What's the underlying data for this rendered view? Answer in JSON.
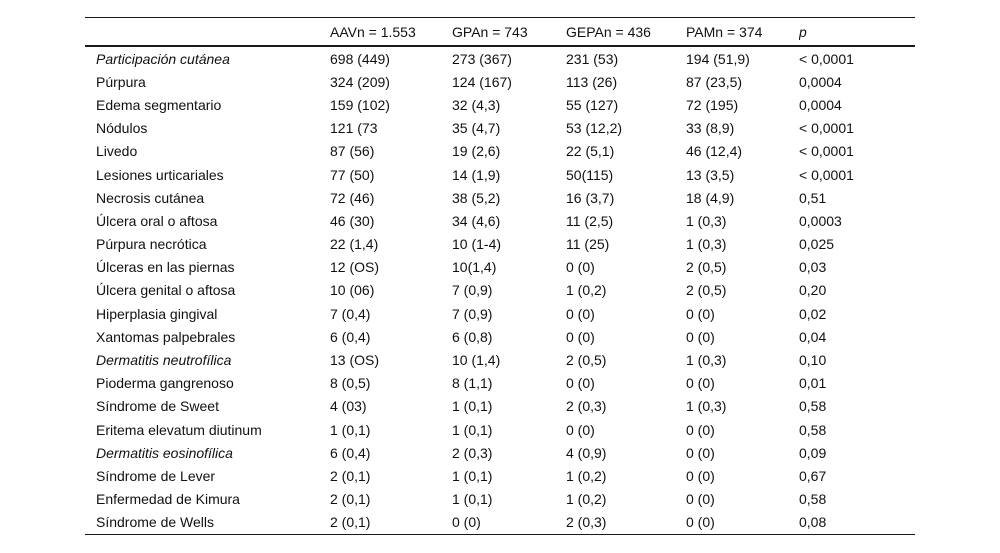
{
  "table": {
    "columns": [
      {
        "label": ""
      },
      {
        "label": "AAVn = 1.553"
      },
      {
        "label": "GPAn = 743"
      },
      {
        "label": "GEPAn = 436"
      },
      {
        "label": "PAMn = 374"
      },
      {
        "label": "p"
      }
    ],
    "rows": [
      {
        "label": "Participación cutánea",
        "italic": true,
        "aav": "698 (449)",
        "gpa": "273 (367)",
        "gepa": "231 (53)",
        "pam": "194 (51,9)",
        "p": "<     0,0001"
      },
      {
        "label": "Púrpura",
        "italic": false,
        "aav": "324 (209)",
        "gpa": "124 (167)",
        "gepa": "113 (26)",
        "pam": "87 (23,5)",
        "p": "0,0004"
      },
      {
        "label": "Edema segmentario",
        "italic": false,
        "aav": "159 (102)",
        "gpa": "32 (4,3)",
        "gepa": "55 (127)",
        "pam": "72 (195)",
        "p": "0,0004"
      },
      {
        "label": "Nódulos",
        "italic": false,
        "aav": "121 (73",
        "gpa": "35 (4,7)",
        "gepa": "53 (12,2)",
        "pam": "33 (8,9)",
        "p": "<     0,0001"
      },
      {
        "label": "Livedo",
        "italic": false,
        "aav": "87 (56)",
        "gpa": "19 (2,6)",
        "gepa": "22 (5,1)",
        "pam": "46 (12,4)",
        "p": "<     0,0001"
      },
      {
        "label": "Lesiones urticariales",
        "italic": false,
        "aav": "77 (50)",
        "gpa": "14 (1,9)",
        "gepa": "50(115)",
        "pam": "13 (3,5)",
        "p": "<     0,0001"
      },
      {
        "label": "Necrosis cutánea",
        "italic": false,
        "aav": "72 (46)",
        "gpa": "38 (5,2)",
        "gepa": "16 (3,7)",
        "pam": "18 (4,9)",
        "p": "0,51"
      },
      {
        "label": "Úlcera oral o aftosa",
        "italic": false,
        "aav": "46 (30)",
        "gpa": "34 (4,6)",
        "gepa": "11 (2,5)",
        "pam": "1 (0,3)",
        "p": "0,0003"
      },
      {
        "label": "Púrpura necrótica",
        "italic": false,
        "aav": "22 (1,4)",
        "gpa": "10 (1-4)",
        "gepa": "11 (25)",
        "pam": "1 (0,3)",
        "p": "0,025"
      },
      {
        "label": "Úlceras en las piernas",
        "italic": false,
        "aav": "12 (OS)",
        "gpa": "10(1,4)",
        "gepa": "0 (0)",
        "pam": "2 (0,5)",
        "p": "0,03"
      },
      {
        "label": "Úlcera genital o aftosa",
        "italic": false,
        "aav": "10 (06)",
        "gpa": "7 (0,9)",
        "gepa": "1 (0,2)",
        "pam": "2 (0,5)",
        "p": "0,20"
      },
      {
        "label": "Hiperplasia gingival",
        "italic": false,
        "aav": "7 (0,4)",
        "gpa": "7 (0,9)",
        "gepa": "0 (0)",
        "pam": "0 (0)",
        "p": "0,02"
      },
      {
        "label": "Xantomas palpebrales",
        "italic": false,
        "aav": "6 (0,4)",
        "gpa": "6 (0,8)",
        "gepa": "0 (0)",
        "pam": "0 (0)",
        "p": "0,04"
      },
      {
        "label": "Dermatitis neutrofílica",
        "italic": true,
        "aav": "13 (OS)",
        "gpa": "10 (1,4)",
        "gepa": "2 (0,5)",
        "pam": "1 (0,3)",
        "p": "0,10"
      },
      {
        "label": "Pioderma gangrenoso",
        "italic": false,
        "aav": "8 (0,5)",
        "gpa": "8 (1,1)",
        "gepa": "0 (0)",
        "pam": "0 (0)",
        "p": "0,01"
      },
      {
        "label": "Síndrome de Sweet",
        "italic": false,
        "aav": "4 (03)",
        "gpa": "1 (0,1)",
        "gepa": "2 (0,3)",
        "pam": "1 (0,3)",
        "p": "0,58"
      },
      {
        "label": "Eritema elevatum diutinum",
        "italic": false,
        "aav": "1 (0,1)",
        "gpa": "1 (0,1)",
        "gepa": "0 (0)",
        "pam": "0 (0)",
        "p": "0,58"
      },
      {
        "label": "Dermatitis eosinofílica",
        "italic": true,
        "aav": "6 (0,4)",
        "gpa": "2 (0,3)",
        "gepa": "4 (0,9)",
        "pam": "0 (0)",
        "p": "0,09"
      },
      {
        "label": "Síndrome de Lever",
        "italic": false,
        "aav": "2 (0,1)",
        "gpa": "1 (0,1)",
        "gepa": "1 (0,2)",
        "pam": "0 (0)",
        "p": "0,67"
      },
      {
        "label": "Enfermedad de Kimura",
        "italic": false,
        "aav": "2 (0,1)",
        "gpa": "1 (0,1)",
        "gepa": "1 (0,2)",
        "pam": "0 (0)",
        "p": "0,58"
      },
      {
        "label": "Síndrome de Wells",
        "italic": false,
        "aav": "2 (0,1)",
        "gpa": "0 (0)",
        "gepa": "2 (0,3)",
        "pam": "0 (0)",
        "p": "0,08"
      }
    ]
  }
}
